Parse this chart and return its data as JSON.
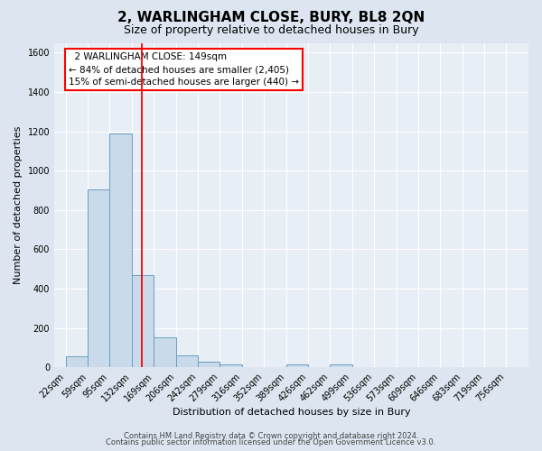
{
  "title": "2, WARLINGHAM CLOSE, BURY, BL8 2QN",
  "subtitle": "Size of property relative to detached houses in Bury",
  "xlabel": "Distribution of detached houses by size in Bury",
  "ylabel": "Number of detached properties",
  "footer_line1": "Contains HM Land Registry data © Crown copyright and database right 2024.",
  "footer_line2": "Contains public sector information licensed under the Open Government Licence v3.0.",
  "bin_labels": [
    "22sqm",
    "59sqm",
    "95sqm",
    "132sqm",
    "169sqm",
    "206sqm",
    "242sqm",
    "279sqm",
    "316sqm",
    "352sqm",
    "389sqm",
    "426sqm",
    "462sqm",
    "499sqm",
    "536sqm",
    "573sqm",
    "609sqm",
    "646sqm",
    "683sqm",
    "719sqm",
    "756sqm"
  ],
  "bin_left_edges": [
    22,
    59,
    95,
    132,
    169,
    206,
    242,
    279,
    316,
    352,
    389,
    426,
    462,
    499,
    536,
    573,
    609,
    646,
    683,
    719,
    756
  ],
  "bar_heights": [
    55,
    905,
    1190,
    470,
    150,
    60,
    27,
    15,
    0,
    0,
    15,
    0,
    15,
    0,
    0,
    0,
    0,
    0,
    0,
    0,
    0
  ],
  "bar_color": "#c9daea",
  "bar_edge_color": "#6a9fc0",
  "vline_x": 149,
  "vline_color": "red",
  "annotation_title": "2 WARLINGHAM CLOSE: 149sqm",
  "annotation_line1": "← 84% of detached houses are smaller (2,405)",
  "annotation_line2": "15% of semi-detached houses are larger (440) →",
  "annotation_box_facecolor": "white",
  "annotation_box_edgecolor": "red",
  "ylim": [
    0,
    1650
  ],
  "xlim_left": 3,
  "xlim_right": 793,
  "background_color": "#dde6f0",
  "plot_background_color": "#e8eef6",
  "grid_color": "#ffffff",
  "yticks": [
    0,
    200,
    400,
    600,
    800,
    1000,
    1200,
    1400,
    1600
  ],
  "title_fontsize": 11,
  "subtitle_fontsize": 9,
  "axis_label_fontsize": 8,
  "tick_fontsize": 7,
  "footer_fontsize": 6
}
